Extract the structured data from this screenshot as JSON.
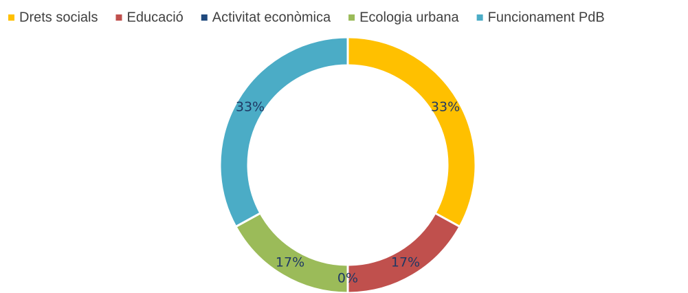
{
  "chart_data": {
    "type": "donut",
    "categories": [
      "Drets socials",
      "Educació",
      "Activitat econòmica",
      "Ecologia urbana",
      "Funcionament PdB"
    ],
    "values": [
      33,
      17,
      0,
      17,
      33
    ],
    "value_labels": [
      "33%",
      "17%",
      "0%",
      "17%",
      "33%"
    ],
    "colors": [
      "#ffc000",
      "#c0504d",
      "#1f497d",
      "#9bbb59",
      "#4bacc6"
    ],
    "legend": "top"
  }
}
